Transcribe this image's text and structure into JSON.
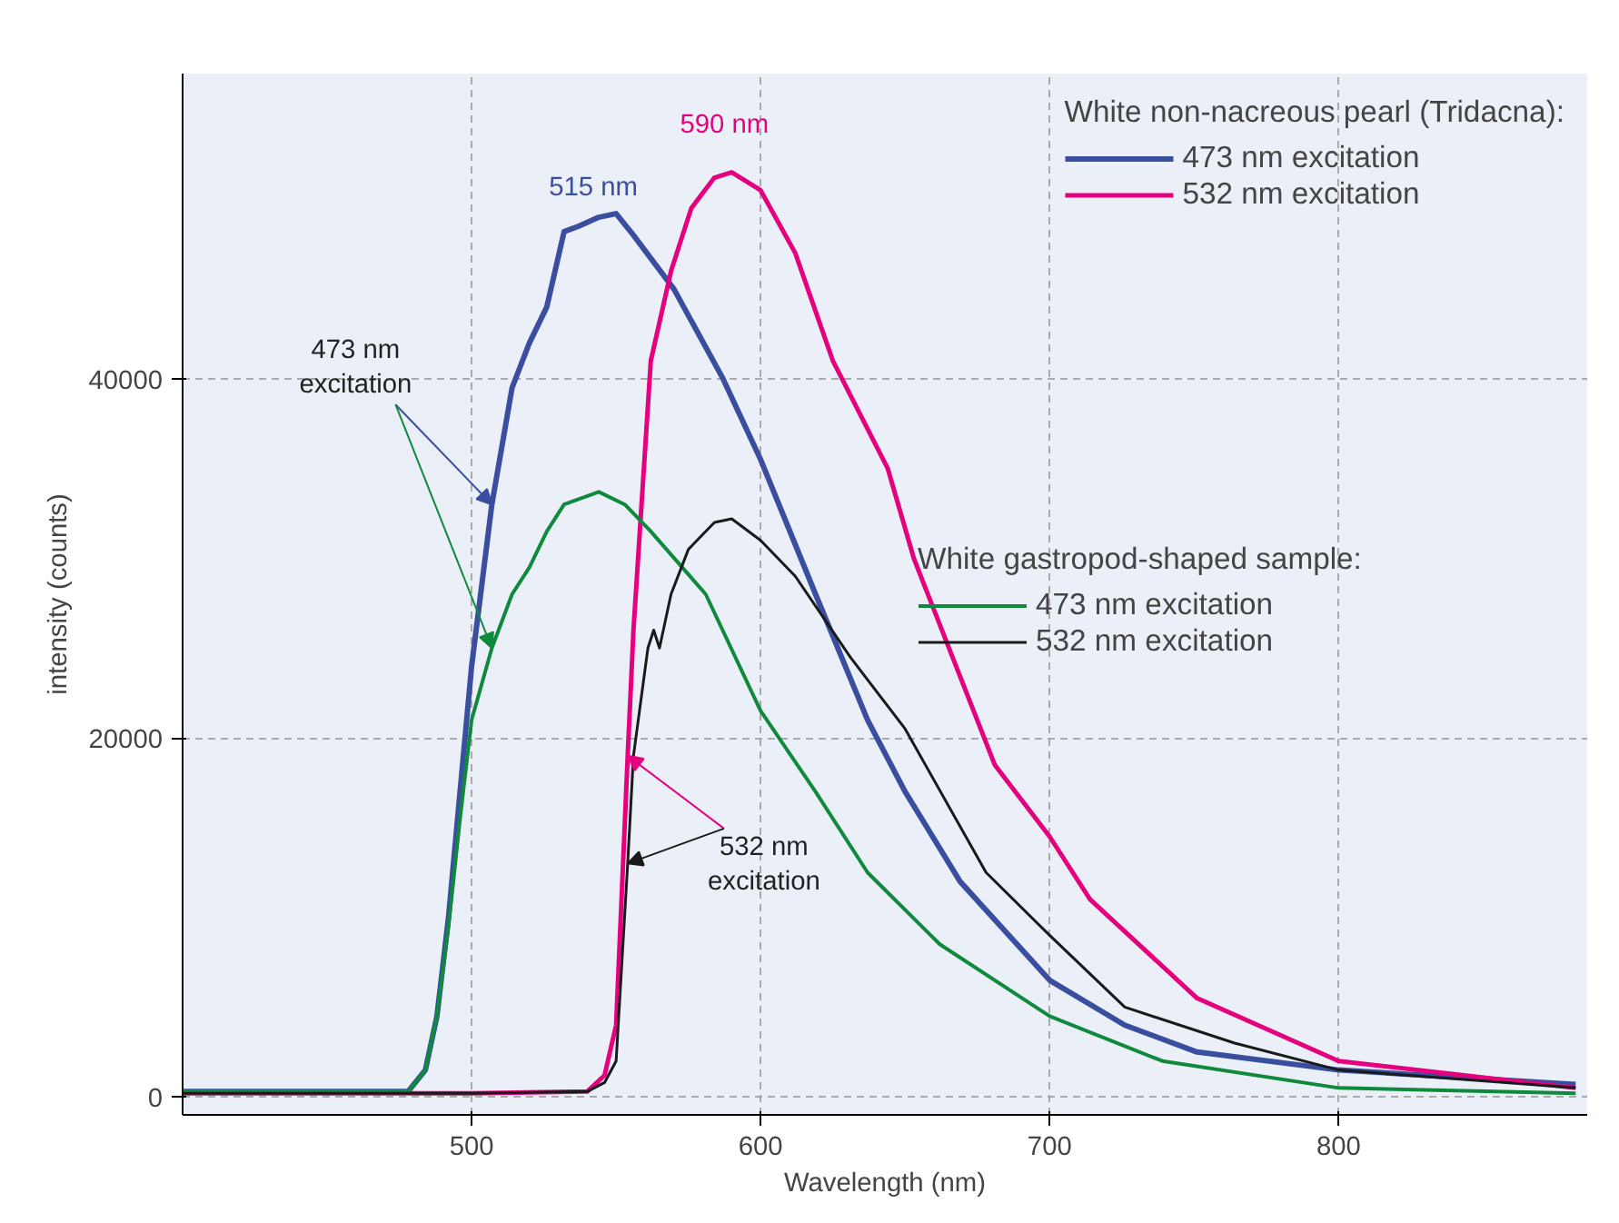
{
  "chart_data": {
    "type": "line",
    "xlabel": "Wavelength (nm)",
    "ylabel": "intensity (counts)",
    "xlim": [
      400,
      886
    ],
    "ylim": [
      -1000,
      57000
    ],
    "xticks": [
      500,
      600,
      700,
      800
    ],
    "yticks": [
      0,
      20000,
      40000
    ],
    "grid": true,
    "legend": "top right",
    "line_style": "solid",
    "legend_title": [
      "White non-nacreous pearl (Tridacna):",
      "White gastropod-shaped sample:"
    ],
    "series": [
      {
        "name": "473 nm excitation",
        "color": "#3a4ea0",
        "x": [
          400,
          450,
          478,
          484,
          488,
          492,
          496,
          500,
          507,
          514,
          520,
          526,
          532,
          537,
          544,
          550,
          556,
          570,
          587,
          600,
          619,
          637,
          650,
          669,
          700,
          726,
          751,
          800,
          882
        ],
        "values": [
          300,
          300,
          300,
          1500,
          4500,
          10000,
          17000,
          24000,
          33000,
          39500,
          42000,
          44000,
          48200,
          48500,
          49000,
          49200,
          48000,
          45000,
          40000,
          35500,
          28000,
          21000,
          17000,
          12000,
          6500,
          4000,
          2500,
          1500,
          700
        ]
      },
      {
        "name": "532 nm excitation",
        "color": "#e5007e",
        "x": [
          400,
          500,
          540,
          546,
          550,
          554,
          556,
          562,
          569,
          576,
          584,
          590,
          600,
          612,
          625,
          644,
          653,
          681,
          700,
          714,
          751,
          800,
          882
        ],
        "values": [
          200,
          200,
          300,
          1200,
          4000,
          19000,
          26000,
          41000,
          46000,
          49500,
          51200,
          51500,
          50500,
          47000,
          41000,
          35000,
          30000,
          18500,
          14500,
          11000,
          5500,
          2000,
          500
        ]
      },
      {
        "name": "473 nm excitation",
        "color": "#0f8a3c",
        "x": [
          400,
          450,
          478,
          484,
          488,
          492,
          496,
          500,
          507,
          514,
          520,
          526,
          532,
          544,
          553,
          562,
          581,
          600,
          619,
          637,
          662,
          700,
          739,
          800,
          882
        ],
        "values": [
          300,
          300,
          300,
          1500,
          4500,
          9500,
          15500,
          21000,
          25000,
          28000,
          29500,
          31500,
          33000,
          33700,
          33000,
          31500,
          28000,
          21500,
          17000,
          12500,
          8500,
          4500,
          2000,
          500,
          200
        ]
      },
      {
        "name": "532 nm excitation",
        "color": "#1a1a1a",
        "x": [
          400,
          500,
          540,
          546,
          550,
          554,
          556,
          561,
          563,
          565,
          569,
          575,
          584,
          590,
          600,
          612,
          631,
          650,
          678,
          700,
          726,
          764,
          800,
          882
        ],
        "values": [
          200,
          200,
          300,
          800,
          2000,
          13000,
          19000,
          25000,
          26000,
          25000,
          28000,
          30500,
          32000,
          32200,
          31000,
          29000,
          24500,
          20500,
          12500,
          9000,
          5000,
          3000,
          1500,
          500
        ]
      }
    ],
    "annotations": [
      {
        "text": "515 nm",
        "x": 544,
        "y": 49000
      },
      {
        "text": "590 nm",
        "x": 590,
        "y": 51500
      },
      {
        "text": "473 nm\nexcitation",
        "x": 507,
        "y": 33000
      },
      {
        "text": "532 nm\nexcitation",
        "x": 554,
        "y": 19000
      }
    ]
  }
}
